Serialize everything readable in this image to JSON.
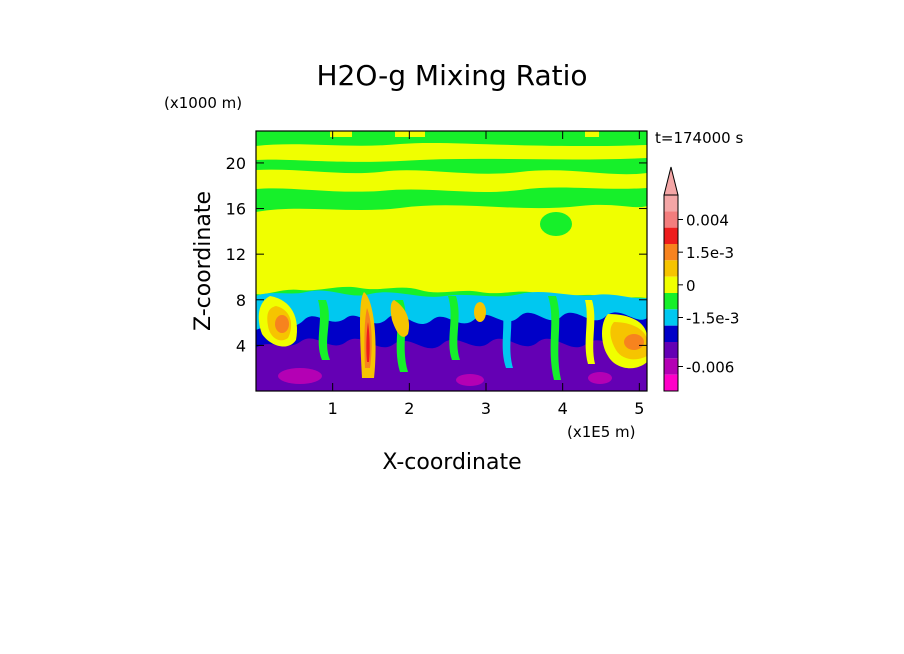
{
  "chart_data": {
    "type": "heatmap",
    "title": "H2O-g Mixing Ratio",
    "time_label": "t=174000 s",
    "xlabel": "X-coordinate",
    "ylabel": "Z-coordinate",
    "x_unit_label": "(x1E5 m)",
    "y_unit_label": "(x1000 m)",
    "xlim": [
      0,
      5.1
    ],
    "ylim": [
      0,
      22.8
    ],
    "x_ticks": [
      1,
      2,
      3,
      4,
      5
    ],
    "y_ticks": [
      4,
      8,
      12,
      16,
      20
    ],
    "x_tick_labels": [
      "1",
      "2",
      "3",
      "4",
      "5"
    ],
    "y_tick_labels": [
      "4",
      "8",
      "12",
      "16",
      "20"
    ],
    "grid": false,
    "colorbar": {
      "levels": [
        {
          "color": "#f4a6a6",
          "label": ""
        },
        {
          "color": "#f37d7d",
          "label": "0.004"
        },
        {
          "color": "#ee1c1c",
          "label": ""
        },
        {
          "color": "#f7831e",
          "label": "1.5e-3"
        },
        {
          "color": "#f6c400",
          "label": ""
        },
        {
          "color": "#f0ff00",
          "label": "0"
        },
        {
          "color": "#16f02a",
          "label": ""
        },
        {
          "color": "#00c8f0",
          "label": "-1.5e-3"
        },
        {
          "color": "#0000c8",
          "label": ""
        },
        {
          "color": "#6400b4",
          "label": ""
        },
        {
          "color": "#b400b4",
          "label": "-0.006"
        },
        {
          "color": "#ff00c8",
          "label": ""
        }
      ],
      "extend": "max"
    }
  }
}
